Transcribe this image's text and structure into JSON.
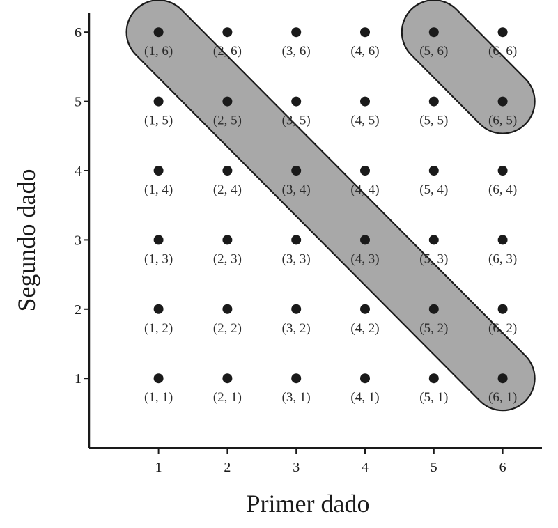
{
  "chart_data": {
    "type": "scatter",
    "title": "",
    "xlabel": "Primer dado",
    "ylabel": "Segundo dado",
    "xlim": [
      0,
      6.5
    ],
    "ylim": [
      0,
      6.3
    ],
    "x_ticks": [
      "1",
      "2",
      "3",
      "4",
      "5",
      "6"
    ],
    "y_ticks": [
      "1",
      "2",
      "3",
      "4",
      "5",
      "6"
    ],
    "grid": false,
    "points": [
      {
        "x": 1,
        "y": 6,
        "label": "(1, 6)"
      },
      {
        "x": 2,
        "y": 6,
        "label": "(2, 6)"
      },
      {
        "x": 3,
        "y": 6,
        "label": "(3, 6)"
      },
      {
        "x": 4,
        "y": 6,
        "label": "(4, 6)"
      },
      {
        "x": 5,
        "y": 6,
        "label": "(5, 6)"
      },
      {
        "x": 6,
        "y": 6,
        "label": "(6, 6)"
      },
      {
        "x": 1,
        "y": 5,
        "label": "(1, 5)"
      },
      {
        "x": 2,
        "y": 5,
        "label": "(2, 5)"
      },
      {
        "x": 3,
        "y": 5,
        "label": "(3, 5)"
      },
      {
        "x": 4,
        "y": 5,
        "label": "(4, 5)"
      },
      {
        "x": 5,
        "y": 5,
        "label": "(5, 5)"
      },
      {
        "x": 6,
        "y": 5,
        "label": "(6, 5)"
      },
      {
        "x": 1,
        "y": 4,
        "label": "(1, 4)"
      },
      {
        "x": 2,
        "y": 4,
        "label": "(2, 4)"
      },
      {
        "x": 3,
        "y": 4,
        "label": "(3, 4)"
      },
      {
        "x": 4,
        "y": 4,
        "label": "(4, 4)"
      },
      {
        "x": 5,
        "y": 4,
        "label": "(5, 4)"
      },
      {
        "x": 6,
        "y": 4,
        "label": "(6, 4)"
      },
      {
        "x": 1,
        "y": 3,
        "label": "(1, 3)"
      },
      {
        "x": 2,
        "y": 3,
        "label": "(2, 3)"
      },
      {
        "x": 3,
        "y": 3,
        "label": "(3, 3)"
      },
      {
        "x": 4,
        "y": 3,
        "label": "(4, 3)"
      },
      {
        "x": 5,
        "y": 3,
        "label": "(5, 3)"
      },
      {
        "x": 6,
        "y": 3,
        "label": "(6, 3)"
      },
      {
        "x": 1,
        "y": 2,
        "label": "(1, 2)"
      },
      {
        "x": 2,
        "y": 2,
        "label": "(2, 2)"
      },
      {
        "x": 3,
        "y": 2,
        "label": "(3, 2)"
      },
      {
        "x": 4,
        "y": 2,
        "label": "(4, 2)"
      },
      {
        "x": 5,
        "y": 2,
        "label": "(5, 2)"
      },
      {
        "x": 6,
        "y": 2,
        "label": "(6, 2)"
      },
      {
        "x": 1,
        "y": 1,
        "label": "(1, 1)"
      },
      {
        "x": 2,
        "y": 1,
        "label": "(2, 1)"
      },
      {
        "x": 3,
        "y": 1,
        "label": "(3, 1)"
      },
      {
        "x": 4,
        "y": 1,
        "label": "(4, 1)"
      },
      {
        "x": 5,
        "y": 1,
        "label": "(5, 1)"
      },
      {
        "x": 6,
        "y": 1,
        "label": "(6, 1)"
      }
    ],
    "highlighted_groups": [
      {
        "members": [
          [
            1,
            6
          ],
          [
            2,
            5
          ],
          [
            3,
            4
          ],
          [
            4,
            3
          ],
          [
            5,
            2
          ],
          [
            6,
            1
          ]
        ]
      },
      {
        "members": [
          [
            5,
            6
          ],
          [
            6,
            5
          ]
        ]
      }
    ],
    "colors": {
      "point": "#1a1a1a",
      "highlight_fill": "#a8a8a8",
      "outline": "#1a1a1a"
    }
  }
}
